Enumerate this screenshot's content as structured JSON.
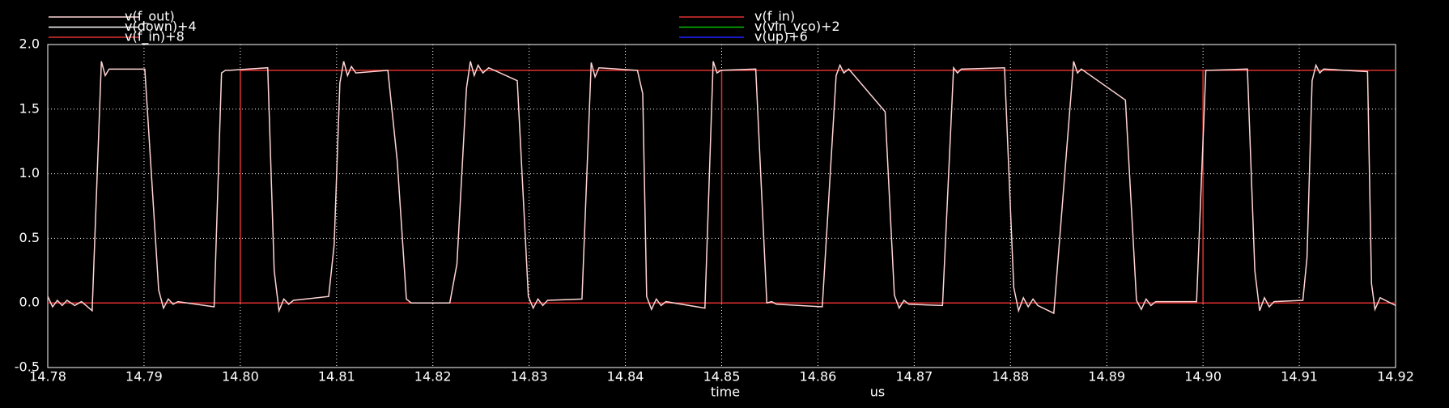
{
  "chart_data": {
    "type": "line",
    "xlabel": "time",
    "xunit": "us",
    "xlim": [
      14.78,
      14.92
    ],
    "xticks": [
      14.78,
      14.79,
      {
        "value": 14.8,
        "label": "14.80"
      },
      14.81,
      14.82,
      14.83,
      14.84,
      14.85,
      14.86,
      14.87,
      14.88,
      14.89,
      {
        "value": 14.9,
        "label": "14.90"
      },
      14.91,
      14.92
    ],
    "ylim": [
      -0.5,
      2.0
    ],
    "yticks": [
      -0.5,
      {
        "value": 0,
        "label": "0.0"
      },
      0.5,
      {
        "value": 1,
        "label": "1.0"
      },
      1.5,
      {
        "value": 2,
        "label": "2.0"
      }
    ],
    "grid": true,
    "series": [
      {
        "name": "v(f_out)",
        "color": "#ffd4d4",
        "x": [
          14.78,
          14.7805,
          14.781,
          14.7815,
          14.782,
          14.7828,
          14.7835,
          14.78461,
          14.78557,
          14.78597,
          14.78637,
          14.79008,
          14.79152,
          14.79202,
          14.79252,
          14.79302,
          14.79352,
          14.79728,
          14.79805,
          14.79845,
          14.79885,
          14.80285,
          14.80352,
          14.80402,
          14.80452,
          14.80502,
          14.80552,
          14.80918,
          14.80975,
          14.81034,
          14.81074,
          14.81114,
          14.81154,
          14.812,
          14.81533,
          14.8163,
          14.81725,
          14.81775,
          14.81825,
          14.82176,
          14.8225,
          14.82349,
          14.8239,
          14.8243,
          14.8247,
          14.8252,
          14.8258,
          14.82877,
          14.82992,
          14.83042,
          14.83092,
          14.83142,
          14.83192,
          14.83549,
          14.83645,
          14.83685,
          14.83725,
          14.84125,
          14.8418,
          14.84221,
          14.84271,
          14.84321,
          14.84371,
          14.84421,
          14.84826,
          14.84912,
          14.84952,
          14.84992,
          14.85354,
          14.85469,
          14.85519,
          14.85569,
          14.86045,
          14.86189,
          14.86229,
          14.86269,
          14.8632,
          14.86698,
          14.86794,
          14.86844,
          14.86894,
          14.86944,
          14.87294,
          14.87409,
          14.87449,
          14.87489,
          14.87938,
          14.88034,
          14.88084,
          14.88134,
          14.88184,
          14.88234,
          14.88284,
          14.8845,
          14.88656,
          14.88696,
          14.88736,
          14.89194,
          14.89309,
          14.89359,
          14.89409,
          14.89459,
          14.89509,
          14.89933,
          14.90029,
          14.90461,
          14.90538,
          14.90588,
          14.90638,
          14.90688,
          14.90738,
          14.91037,
          14.9108,
          14.91133,
          14.91173,
          14.91213,
          14.91253,
          14.91709,
          14.9175,
          14.91786,
          14.9184,
          14.92
        ],
        "values": [
          0.05,
          -0.03,
          0.02,
          -0.02,
          0.02,
          -0.02,
          0.01,
          -0.06,
          1.87,
          1.76,
          1.81,
          1.81,
          0.1,
          -0.04,
          0.03,
          -0.01,
          0.01,
          -0.03,
          1.78,
          1.8,
          1.8,
          1.82,
          0.25,
          -0.06,
          0.03,
          -0.01,
          0.02,
          0.05,
          0.45,
          1.7,
          1.87,
          1.76,
          1.83,
          1.78,
          1.8,
          1.1,
          0.03,
          0.0,
          0.0,
          0.0,
          0.3,
          1.66,
          1.87,
          1.76,
          1.84,
          1.78,
          1.82,
          1.72,
          0.05,
          -0.04,
          0.03,
          -0.02,
          0.02,
          0.03,
          1.86,
          1.75,
          1.82,
          1.8,
          1.62,
          0.05,
          -0.05,
          0.03,
          -0.02,
          0.01,
          -0.04,
          1.87,
          1.78,
          1.8,
          1.81,
          0.0,
          0.01,
          -0.01,
          -0.03,
          1.76,
          1.84,
          1.78,
          1.81,
          1.48,
          0.06,
          -0.04,
          0.02,
          -0.01,
          -0.02,
          1.82,
          1.78,
          1.81,
          1.82,
          0.12,
          -0.06,
          0.04,
          -0.03,
          0.03,
          -0.02,
          -0.08,
          1.87,
          1.78,
          1.81,
          1.57,
          0.02,
          -0.05,
          0.03,
          -0.02,
          0.01,
          0.01,
          1.8,
          1.81,
          0.25,
          -0.06,
          0.04,
          -0.03,
          0.01,
          0.02,
          0.35,
          1.72,
          1.84,
          1.78,
          1.81,
          1.79,
          0.15,
          -0.05,
          0.04,
          -0.02
        ]
      },
      {
        "name": "v(down)+4",
        "color": "#ffffff"
      },
      {
        "name": "v(f_in)+8",
        "color": "#e03030"
      },
      {
        "name": "v(f_in)",
        "color": "#e03030",
        "x": [
          14.78,
          14.8,
          14.8,
          14.92,
          null,
          14.8,
          14.92,
          null,
          14.85,
          14.85,
          null,
          14.9,
          14.9
        ],
        "values": [
          0,
          0,
          1.8,
          1.8,
          null,
          0,
          0,
          null,
          0,
          1.8,
          null,
          0,
          1.8
        ]
      },
      {
        "name": "v(vin_vco)+2",
        "color": "#00c000"
      },
      {
        "name": "v(up)+6",
        "color": "#2020ff"
      }
    ]
  }
}
